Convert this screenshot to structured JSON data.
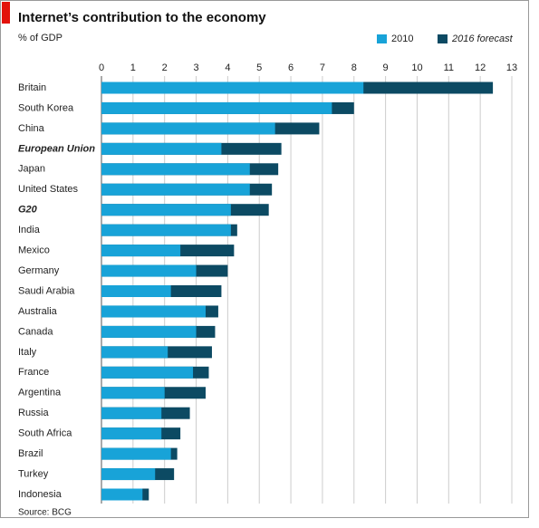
{
  "chart_data": {
    "type": "bar",
    "orientation": "horizontal",
    "overlap": true,
    "title": "Internet’s contribution to the economy",
    "subtitle": "% of GDP",
    "source": "Source: BCG",
    "categories": [
      "Britain",
      "South Korea",
      "China",
      "European Union",
      "Japan",
      "United States",
      "G20",
      "India",
      "Mexico",
      "Germany",
      "Saudi Arabia",
      "Australia",
      "Canada",
      "Italy",
      "France",
      "Argentina",
      "Russia",
      "South Africa",
      "Brazil",
      "Turkey",
      "Indonesia"
    ],
    "emphasized_categories": [
      3,
      6
    ],
    "series": [
      {
        "name": "2010",
        "color": "#18a3d8",
        "values": [
          8.3,
          7.3,
          5.5,
          3.8,
          4.7,
          4.7,
          4.1,
          4.1,
          2.5,
          3.0,
          2.2,
          3.3,
          3.0,
          2.1,
          2.9,
          2.0,
          1.9,
          1.9,
          2.2,
          1.7,
          1.3
        ]
      },
      {
        "name": "2016 forecast",
        "color": "#0c4a63",
        "values": [
          12.4,
          8.0,
          6.9,
          5.7,
          5.6,
          5.4,
          5.3,
          4.3,
          4.2,
          4.0,
          3.8,
          3.7,
          3.6,
          3.5,
          3.4,
          3.3,
          2.8,
          2.5,
          2.4,
          2.3,
          1.5
        ]
      }
    ],
    "xlim": [
      0,
      13
    ],
    "xticks": [
      0,
      1,
      2,
      3,
      4,
      5,
      6,
      7,
      8,
      9,
      10,
      11,
      12,
      13
    ],
    "grid": true,
    "legend": "top-right"
  }
}
